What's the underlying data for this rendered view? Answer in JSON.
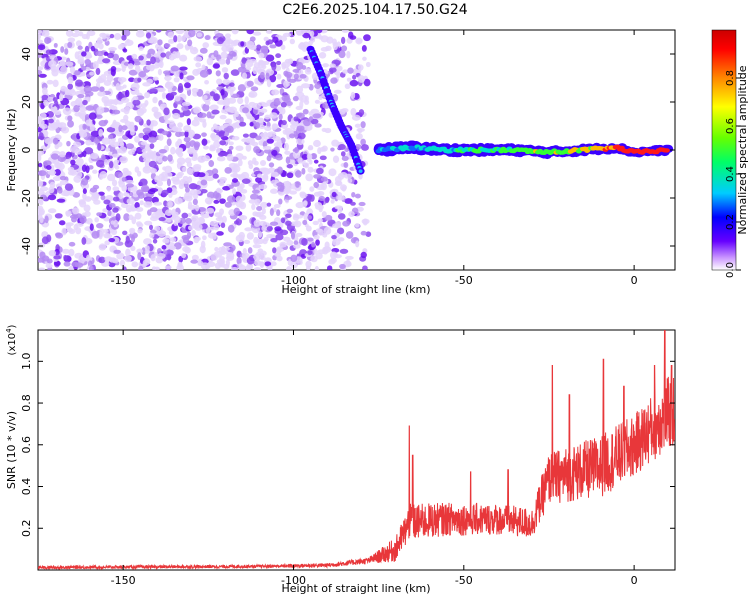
{
  "title": "C2E6.2025.104.17.50.G24",
  "chart_data": [
    {
      "type": "heatmap",
      "xlabel": "Height of straight line (km)",
      "ylabel": "Frequency (Hz)",
      "xlim": [
        -175,
        12
      ],
      "ylim": [
        -50,
        50
      ],
      "xticks": [
        -150,
        -100,
        -50,
        0
      ],
      "yticks": [
        -40,
        -20,
        0,
        20,
        40
      ],
      "colorbar": {
        "label": "Normalized spectral amplitude",
        "range": [
          0,
          1
        ],
        "ticks": [
          "0.0",
          "0.2",
          "0.4",
          "0.6",
          "0.8"
        ],
        "colors": [
          "#ffffff",
          "#cc99ff",
          "#6600ff",
          "#0000ff",
          "#00ccff",
          "#00ff66",
          "#66ff00",
          "#ffff00",
          "#ff8800",
          "#ff0000",
          "#cc0000"
        ]
      },
      "features": {
        "noise_region_x": [
          -175,
          -78
        ],
        "noise_amplitude": "0.0-0.2",
        "chirp_track": [
          {
            "x": -95,
            "f": 42
          },
          {
            "x": -92,
            "f": 32
          },
          {
            "x": -89,
            "f": 20
          },
          {
            "x": -86,
            "f": 10
          },
          {
            "x": -83,
            "f": 2
          },
          {
            "x": -80,
            "f": -10
          }
        ],
        "tone_track": [
          {
            "x": -75,
            "f": 0,
            "amp": 0.4
          },
          {
            "x": -65,
            "f": 1,
            "amp": 0.45
          },
          {
            "x": -55,
            "f": 0,
            "amp": 0.5
          },
          {
            "x": -45,
            "f": 0,
            "amp": 0.55
          },
          {
            "x": -35,
            "f": 0,
            "amp": 0.6
          },
          {
            "x": -25,
            "f": -1,
            "amp": 0.65
          },
          {
            "x": -15,
            "f": 0,
            "amp": 0.7
          },
          {
            "x": -5,
            "f": 1,
            "amp": 0.85
          },
          {
            "x": 0,
            "f": -1,
            "amp": 0.95
          },
          {
            "x": 10,
            "f": 0,
            "amp": 0.95
          }
        ]
      }
    },
    {
      "type": "line",
      "xlabel": "Height of straight line (km)",
      "ylabel": "SNR (10 * v/v)",
      "yscale_note": "(x10",
      "yscale_exp": "4",
      "xlim": [
        -175,
        12
      ],
      "ylim": [
        0,
        1.15
      ],
      "xticks": [
        -150,
        -100,
        -50,
        0
      ],
      "yticks": [
        0.2,
        0.4,
        0.6,
        0.8,
        1.0
      ],
      "color": "#e8373a",
      "series": [
        {
          "envelope": [
            {
              "x": -175,
              "base": 0.01,
              "spread": 0.015
            },
            {
              "x": -110,
              "base": 0.015,
              "spread": 0.015
            },
            {
              "x": -90,
              "base": 0.02,
              "spread": 0.02
            },
            {
              "x": -78,
              "base": 0.04,
              "spread": 0.03
            },
            {
              "x": -70,
              "base": 0.08,
              "spread": 0.12
            },
            {
              "x": -66,
              "base": 0.2,
              "spread": 0.18
            },
            {
              "x": -55,
              "base": 0.22,
              "spread": 0.16
            },
            {
              "x": -40,
              "base": 0.22,
              "spread": 0.15
            },
            {
              "x": -30,
              "base": 0.2,
              "spread": 0.15
            },
            {
              "x": -25,
              "base": 0.4,
              "spread": 0.25
            },
            {
              "x": -10,
              "base": 0.45,
              "spread": 0.3
            },
            {
              "x": 0,
              "base": 0.55,
              "spread": 0.3
            },
            {
              "x": 10,
              "base": 0.7,
              "spread": 0.35
            }
          ],
          "peaks": [
            {
              "x": -66,
              "y": 0.69
            },
            {
              "x": -65,
              "y": 0.55
            },
            {
              "x": -48,
              "y": 0.47
            },
            {
              "x": -37,
              "y": 0.48
            },
            {
              "x": -24,
              "y": 0.98
            },
            {
              "x": -19,
              "y": 0.84
            },
            {
              "x": -9,
              "y": 1.01
            },
            {
              "x": -3,
              "y": 0.88
            },
            {
              "x": 6,
              "y": 0.98
            },
            {
              "x": 9,
              "y": 1.15
            },
            {
              "x": 11,
              "y": 0.98
            }
          ]
        }
      ]
    }
  ]
}
